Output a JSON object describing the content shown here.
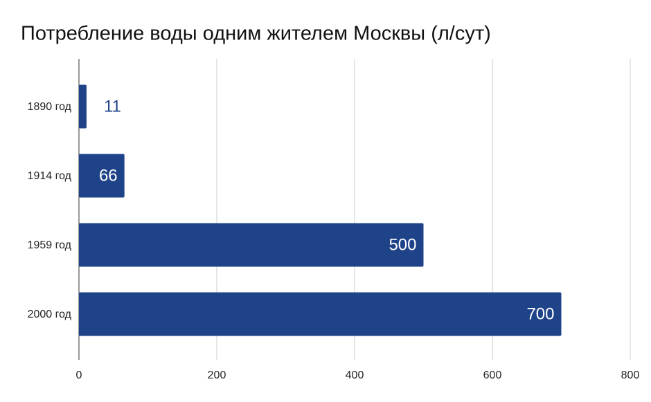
{
  "chart_data": {
    "type": "bar",
    "orientation": "horizontal",
    "title": "Потребление воды одним жителем Москвы (л/сут)",
    "categories": [
      "1890 год",
      "1914 год",
      "1959 год",
      "2000 год"
    ],
    "values": [
      11,
      66,
      500,
      700
    ],
    "color": "#1e4388",
    "xlim": [
      0,
      800
    ],
    "xticks": [
      0,
      200,
      400,
      600,
      800
    ],
    "grid": true
  }
}
